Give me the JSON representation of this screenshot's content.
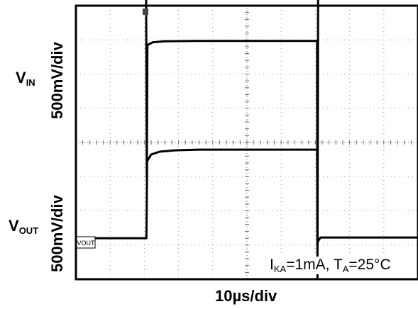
{
  "chart_data": {
    "type": "line",
    "xlabel": "10µs/div",
    "annotation": {
      "i_main": "I",
      "i_sub": "KA",
      "i_rest": "=1mA, T",
      "t_sub": "A",
      "t_rest": "=25°C"
    },
    "grid": true,
    "divisions": {
      "x": 10,
      "y": 8
    },
    "x_range_div": [
      0,
      10
    ],
    "y_range_div": [
      0,
      8
    ],
    "channels": [
      {
        "name_main": "V",
        "name_sub": "IN",
        "scale": "500mV/div",
        "color": "#000000",
        "points_div": [
          [
            0,
            8.8
          ],
          [
            2.05,
            8.8
          ],
          [
            2.07,
            2.95
          ],
          [
            2.09,
            6.85
          ],
          [
            2.25,
            6.93
          ],
          [
            2.6,
            6.96
          ],
          [
            3.5,
            6.97
          ],
          [
            7.0,
            6.97
          ],
          [
            7.05,
            6.97
          ],
          [
            7.06,
            0
          ],
          [
            7.08,
            8.8
          ],
          [
            10,
            8.8
          ]
        ]
      },
      {
        "name_main": "V",
        "name_sub": "OUT",
        "scale": "500mV/div",
        "color": "#000000",
        "marker_label": "VOUT",
        "points_div": [
          [
            0,
            1.2
          ],
          [
            2.06,
            1.2
          ],
          [
            2.08,
            3.45
          ],
          [
            2.2,
            3.65
          ],
          [
            2.45,
            3.73
          ],
          [
            2.9,
            3.77
          ],
          [
            3.6,
            3.79
          ],
          [
            7.05,
            3.79
          ],
          [
            7.06,
            1.05
          ],
          [
            7.08,
            1.12
          ],
          [
            7.15,
            1.22
          ],
          [
            7.4,
            1.22
          ],
          [
            10,
            1.22
          ]
        ]
      }
    ]
  }
}
